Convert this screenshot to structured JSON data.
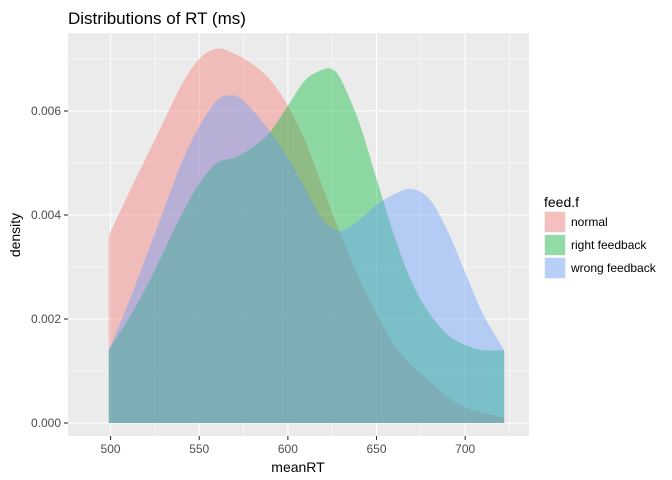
{
  "chart_data": {
    "type": "area",
    "title": "Distributions of RT (ms)",
    "xlabel": "meanRT",
    "ylabel": "density",
    "xlim": [
      476,
      736
    ],
    "ylim": [
      -0.00025,
      0.0075
    ],
    "x_ticks": [
      500,
      550,
      600,
      650,
      700
    ],
    "y_ticks": [
      0.0,
      0.002,
      0.004,
      0.006
    ],
    "y_tick_labels": [
      "0.000",
      "0.002",
      "0.004",
      "0.006"
    ],
    "grid": true,
    "legend": {
      "title": "feed.f",
      "position": "right"
    },
    "series": [
      {
        "name": "normal",
        "color": "#F8766D",
        "x": [
          499,
          510,
          520,
          530,
          540,
          550,
          560,
          570,
          580,
          590,
          600,
          610,
          620,
          630,
          640,
          650,
          660,
          670,
          680,
          690,
          700,
          710,
          722
        ],
        "y": [
          0.0036,
          0.0044,
          0.0051,
          0.0058,
          0.0065,
          0.007,
          0.0072,
          0.0071,
          0.0069,
          0.0066,
          0.0061,
          0.0054,
          0.0045,
          0.0036,
          0.0028,
          0.0021,
          0.0015,
          0.0011,
          0.0008,
          0.0005,
          0.0003,
          0.0002,
          0.0001
        ]
      },
      {
        "name": "right feedback",
        "color": "#00BA38",
        "x": [
          499,
          510,
          520,
          530,
          540,
          550,
          560,
          570,
          580,
          590,
          600,
          610,
          620,
          625,
          630,
          640,
          650,
          660,
          670,
          680,
          690,
          700,
          710,
          722
        ],
        "y": [
          0.0014,
          0.002,
          0.0026,
          0.0033,
          0.004,
          0.0046,
          0.005,
          0.0051,
          0.0053,
          0.0056,
          0.0061,
          0.0066,
          0.0068,
          0.0068,
          0.0066,
          0.0058,
          0.0047,
          0.0036,
          0.0027,
          0.0021,
          0.0017,
          0.0015,
          0.0014,
          0.0014
        ]
      },
      {
        "name": "wrong feedback",
        "color": "#619CFF",
        "x": [
          499,
          510,
          520,
          530,
          540,
          550,
          560,
          567,
          575,
          590,
          600,
          610,
          620,
          630,
          640,
          650,
          660,
          670,
          680,
          690,
          700,
          710,
          722
        ],
        "y": [
          0.0014,
          0.0023,
          0.0032,
          0.0041,
          0.005,
          0.0057,
          0.0062,
          0.0063,
          0.0062,
          0.0056,
          0.0051,
          0.0045,
          0.0039,
          0.0037,
          0.0039,
          0.0042,
          0.0044,
          0.0045,
          0.0043,
          0.0037,
          0.0029,
          0.0021,
          0.0014
        ]
      }
    ]
  }
}
